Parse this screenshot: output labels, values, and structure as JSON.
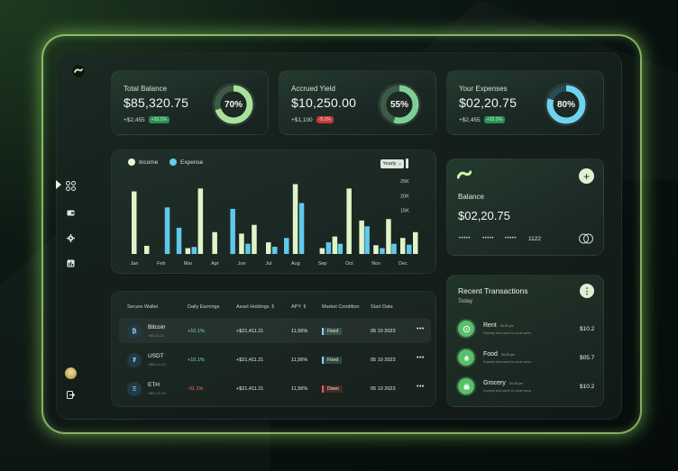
{
  "stats": [
    {
      "title": "Total Balance",
      "value": "$85,320.75",
      "change": "+$2,455",
      "badge": "+10.1%",
      "badge_dir": "up",
      "percent": 70,
      "percent_label": "70%",
      "ring_color": "#a8e29a"
    },
    {
      "title": "Accrued Yield",
      "value": "$10,250.00",
      "change": "+$1,100",
      "badge": "-5.1%",
      "badge_dir": "down",
      "percent": 55,
      "percent_label": "55%",
      "ring_color": "#7fcf95"
    },
    {
      "title": "Your Expenses",
      "value": "$02,20.75",
      "change": "+$2,455",
      "badge": "+10.1%",
      "badge_dir": "up",
      "percent": 80,
      "percent_label": "80%",
      "ring_color": "#6fd3f0"
    }
  ],
  "chart": {
    "legend": {
      "income": "Income",
      "expense": "Expense"
    },
    "period": "Yearly"
  },
  "chart_data": {
    "type": "bar",
    "categories": [
      "Jan",
      "Feb",
      "Mar",
      "Apr",
      "Jun",
      "Jul",
      "Aug",
      "Sep",
      "Oct",
      "Nov",
      "Dec"
    ],
    "y_tick_labels": [
      "25K",
      "20K",
      "15K"
    ],
    "ylim": [
      0,
      26000
    ],
    "series": [
      {
        "name": "Income",
        "color": "#dff4c9",
        "values": [
          [
            21500,
            2800
          ],
          [
            0,
            0
          ],
          [
            2000,
            22500
          ],
          [
            7500,
            0
          ],
          [
            7000,
            10000
          ],
          [
            4000,
            0
          ],
          [
            24000,
            0
          ],
          [
            2000,
            6000
          ],
          [
            22500,
            11500
          ],
          [
            3000,
            12000
          ],
          [
            5500,
            7500
          ]
        ]
      },
      {
        "name": "Expense",
        "color": "#5fc9ea",
        "values": [
          [
            0,
            0
          ],
          [
            16000,
            9000
          ],
          [
            2400,
            0
          ],
          [
            0,
            15500
          ],
          [
            3500,
            0
          ],
          [
            2500,
            5500
          ],
          [
            17500,
            0
          ],
          [
            4000,
            3500
          ],
          [
            0,
            9500
          ],
          [
            2000,
            3500
          ],
          [
            3200,
            0
          ]
        ]
      }
    ]
  },
  "table": {
    "headers": {
      "wallet": "Secure Wallet",
      "earnings": "Daily Earnings",
      "holdings": "Asset Holdings",
      "apy": "APY",
      "market": "Market Condition",
      "start": "Start Date"
    },
    "rows": [
      {
        "icon": "₿",
        "name": "Bitcoin",
        "sub": "+$1,41.21",
        "earnings": "+10.1%",
        "dir": "up",
        "holdings": "+$21,411.21",
        "apy": "11,56%",
        "market": "Fixed",
        "market_kind": "fixed",
        "date": "05 10 2023"
      },
      {
        "icon": "₮",
        "name": "USDT",
        "sub": "+$51,41.21",
        "earnings": "+10.1%",
        "dir": "up",
        "holdings": "+$21,411.21",
        "apy": "11,56%",
        "market": "Fixed",
        "market_kind": "fixed",
        "date": "05 10 2023"
      },
      {
        "icon": "Ξ",
        "name": "ETH",
        "sub": "+$71,41.21",
        "earnings": "-01.1%",
        "dir": "down",
        "holdings": "+$21,411.21",
        "apy": "11,56%",
        "market": "Down",
        "market_kind": "down",
        "date": "05 10 2023"
      }
    ]
  },
  "balance_card": {
    "title": "Balance",
    "amount": "$02,20.75",
    "masked": [
      "•••••",
      "•••••",
      "•••••"
    ],
    "last4": "1122"
  },
  "transactions": {
    "title": "Recent Transactions",
    "group": "Today",
    "items": [
      {
        "name": "Rent",
        "time": "00:00 pm",
        "desc": "Dummy text used to cover area",
        "amount": "$10.2"
      },
      {
        "name": "Food",
        "time": "00:00 pm",
        "desc": "Dummy text used to cover area",
        "amount": "$05.7"
      },
      {
        "name": "Grocery",
        "time": "00:00 pm",
        "desc": "Dummy text used to cover area",
        "amount": "$10.2"
      }
    ]
  }
}
